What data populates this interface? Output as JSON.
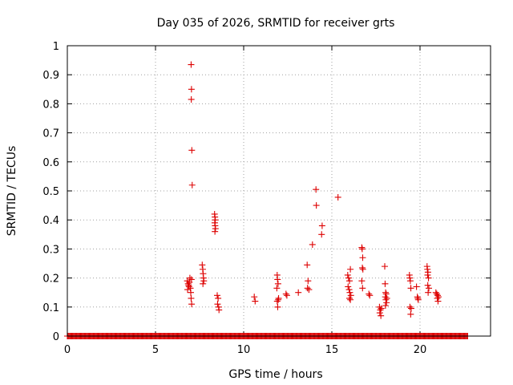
{
  "chart_data": {
    "type": "scatter",
    "title": "Day 035 of 2026, SRMTID for receiver grts",
    "xlabel": "GPS time / hours",
    "ylabel": "SRMTID / TECUs",
    "xlim": [
      0,
      24
    ],
    "ylim": [
      0,
      1
    ],
    "xticks": [
      0,
      5,
      10,
      15,
      20
    ],
    "yticks": [
      0,
      0.1,
      0.2,
      0.3,
      0.4,
      0.5,
      0.6,
      0.7,
      0.8,
      0.9,
      1
    ],
    "xtick_labels": [
      "0",
      "5",
      "10",
      "15",
      "20"
    ],
    "ytick_labels": [
      "0",
      "0.1",
      "0.2",
      "0.3",
      "0.4",
      "0.5",
      "0.6",
      "0.7",
      "0.8",
      "0.9",
      "1"
    ],
    "grid": true,
    "marker": "+",
    "color": "#dd0000",
    "zero_baseline": {
      "start": 0.0,
      "end": 22.7,
      "step": 0.05,
      "y": 0
    },
    "series": [
      {
        "name": "SRMTID",
        "points": [
          [
            6.8,
            0.19
          ],
          [
            6.85,
            0.18
          ],
          [
            6.9,
            0.17
          ],
          [
            6.95,
            0.2
          ],
          [
            6.82,
            0.16
          ],
          [
            6.88,
            0.175
          ],
          [
            6.92,
            0.185
          ],
          [
            7.0,
            0.15
          ],
          [
            7.02,
            0.13
          ],
          [
            7.05,
            0.11
          ],
          [
            6.98,
            0.165
          ],
          [
            7.04,
            0.195
          ],
          [
            7.02,
            0.935
          ],
          [
            7.04,
            0.85
          ],
          [
            7.03,
            0.815
          ],
          [
            7.06,
            0.64
          ],
          [
            7.08,
            0.52
          ],
          [
            7.65,
            0.245
          ],
          [
            7.68,
            0.23
          ],
          [
            7.7,
            0.215
          ],
          [
            7.72,
            0.2
          ],
          [
            7.74,
            0.19
          ],
          [
            7.69,
            0.18
          ],
          [
            8.35,
            0.42
          ],
          [
            8.37,
            0.41
          ],
          [
            8.39,
            0.4
          ],
          [
            8.36,
            0.39
          ],
          [
            8.38,
            0.38
          ],
          [
            8.4,
            0.37
          ],
          [
            8.37,
            0.36
          ],
          [
            8.5,
            0.14
          ],
          [
            8.55,
            0.13
          ],
          [
            8.52,
            0.11
          ],
          [
            8.58,
            0.1
          ],
          [
            8.6,
            0.09
          ],
          [
            10.6,
            0.135
          ],
          [
            10.65,
            0.12
          ],
          [
            11.9,
            0.21
          ],
          [
            11.92,
            0.195
          ],
          [
            11.95,
            0.18
          ],
          [
            11.88,
            0.165
          ],
          [
            11.98,
            0.13
          ],
          [
            11.9,
            0.12
          ],
          [
            11.93,
            0.1
          ],
          [
            11.96,
            0.125
          ],
          [
            12.4,
            0.145
          ],
          [
            12.45,
            0.14
          ],
          [
            13.1,
            0.15
          ],
          [
            13.6,
            0.245
          ],
          [
            13.65,
            0.19
          ],
          [
            13.62,
            0.165
          ],
          [
            13.7,
            0.16
          ],
          [
            13.9,
            0.315
          ],
          [
            14.1,
            0.505
          ],
          [
            14.12,
            0.45
          ],
          [
            14.45,
            0.38
          ],
          [
            14.42,
            0.35
          ],
          [
            15.35,
            0.478
          ],
          [
            15.9,
            0.21
          ],
          [
            15.95,
            0.2
          ],
          [
            16.0,
            0.19
          ],
          [
            16.05,
            0.23
          ],
          [
            15.92,
            0.17
          ],
          [
            15.98,
            0.16
          ],
          [
            16.02,
            0.15
          ],
          [
            16.08,
            0.14
          ],
          [
            16.0,
            0.13
          ],
          [
            16.05,
            0.125
          ],
          [
            16.7,
            0.305
          ],
          [
            16.72,
            0.3
          ],
          [
            16.75,
            0.27
          ],
          [
            16.73,
            0.235
          ],
          [
            16.76,
            0.23
          ],
          [
            16.7,
            0.19
          ],
          [
            16.74,
            0.165
          ],
          [
            17.1,
            0.145
          ],
          [
            17.15,
            0.14
          ],
          [
            17.7,
            0.1
          ],
          [
            17.75,
            0.09
          ],
          [
            17.72,
            0.08
          ],
          [
            17.78,
            0.07
          ],
          [
            17.8,
            0.095
          ],
          [
            18.0,
            0.24
          ],
          [
            18.02,
            0.18
          ],
          [
            18.05,
            0.15
          ],
          [
            18.08,
            0.145
          ],
          [
            18.03,
            0.135
          ],
          [
            18.06,
            0.125
          ],
          [
            18.1,
            0.115
          ],
          [
            18.04,
            0.105
          ],
          [
            18.12,
            0.13
          ],
          [
            19.4,
            0.21
          ],
          [
            19.42,
            0.2
          ],
          [
            19.45,
            0.19
          ],
          [
            19.48,
            0.165
          ],
          [
            19.43,
            0.1
          ],
          [
            19.47,
            0.075
          ],
          [
            19.5,
            0.095
          ],
          [
            19.8,
            0.17
          ],
          [
            19.85,
            0.135
          ],
          [
            19.88,
            0.13
          ],
          [
            19.9,
            0.125
          ],
          [
            20.4,
            0.24
          ],
          [
            20.42,
            0.23
          ],
          [
            20.45,
            0.22
          ],
          [
            20.43,
            0.21
          ],
          [
            20.48,
            0.2
          ],
          [
            20.44,
            0.175
          ],
          [
            20.5,
            0.165
          ],
          [
            20.46,
            0.15
          ],
          [
            20.9,
            0.15
          ],
          [
            20.95,
            0.145
          ],
          [
            21.0,
            0.14
          ],
          [
            20.98,
            0.13
          ],
          [
            21.02,
            0.12
          ],
          [
            21.05,
            0.135
          ]
        ]
      }
    ]
  }
}
